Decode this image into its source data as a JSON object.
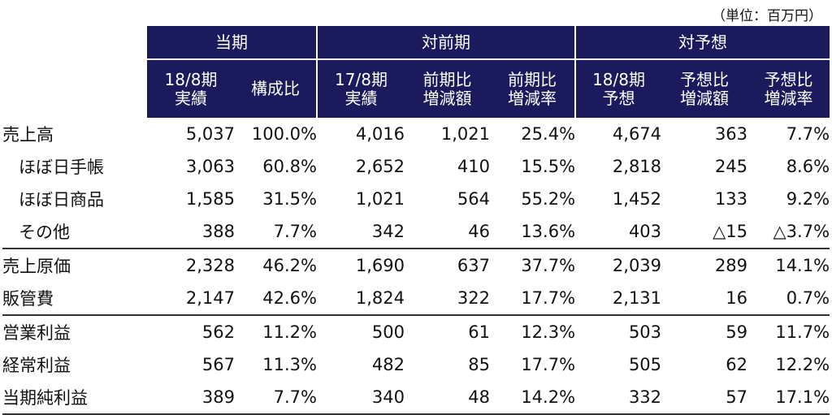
{
  "unit_note": "（単位：百万円）",
  "header": {
    "groups": {
      "current": "当期",
      "prior": "対前期",
      "forecast": "対予想"
    },
    "columns": [
      {
        "line1": "18/8期",
        "line2": "実績"
      },
      {
        "line1": "構成比",
        "line2": ""
      },
      {
        "line1": "17/8期",
        "line2": "実績"
      },
      {
        "line1": "前期比",
        "line2": "増減額"
      },
      {
        "line1": "前期比",
        "line2": "増減率"
      },
      {
        "line1": "18/8期",
        "line2": "予想"
      },
      {
        "line1": "予想比",
        "line2": "増減額"
      },
      {
        "line1": "予想比",
        "line2": "増減率"
      }
    ]
  },
  "rows": [
    {
      "label": "売上高",
      "values": [
        "5,037",
        "100.0%",
        "4,016",
        "1,021",
        "25.4%",
        "4,674",
        "363",
        "7.7%"
      ]
    },
    {
      "label": "ほぼ日手帳",
      "values": [
        "3,063",
        "60.8%",
        "2,652",
        "410",
        "15.5%",
        "2,818",
        "245",
        "8.6%"
      ]
    },
    {
      "label": "ほぼ日商品",
      "values": [
        "1,585",
        "31.5%",
        "1,021",
        "564",
        "55.2%",
        "1,452",
        "133",
        "9.2%"
      ]
    },
    {
      "label": "その他",
      "values": [
        "388",
        "7.7%",
        "342",
        "46",
        "13.6%",
        "403",
        "△15",
        "△3.7%"
      ]
    },
    {
      "label": "売上原価",
      "values": [
        "2,328",
        "46.2%",
        "1,690",
        "637",
        "37.7%",
        "2,039",
        "289",
        "14.1%"
      ]
    },
    {
      "label": "販管費",
      "values": [
        "2,147",
        "42.6%",
        "1,824",
        "322",
        "17.7%",
        "2,131",
        "16",
        "0.7%"
      ]
    },
    {
      "label": "営業利益",
      "values": [
        "562",
        "11.2%",
        "500",
        "61",
        "12.3%",
        "503",
        "59",
        "11.7%"
      ]
    },
    {
      "label": "経常利益",
      "values": [
        "567",
        "11.3%",
        "482",
        "85",
        "17.7%",
        "505",
        "62",
        "12.2%"
      ]
    },
    {
      "label": "当期純利益",
      "values": [
        "389",
        "7.7%",
        "340",
        "48",
        "14.2%",
        "332",
        "57",
        "17.1%"
      ]
    }
  ]
}
